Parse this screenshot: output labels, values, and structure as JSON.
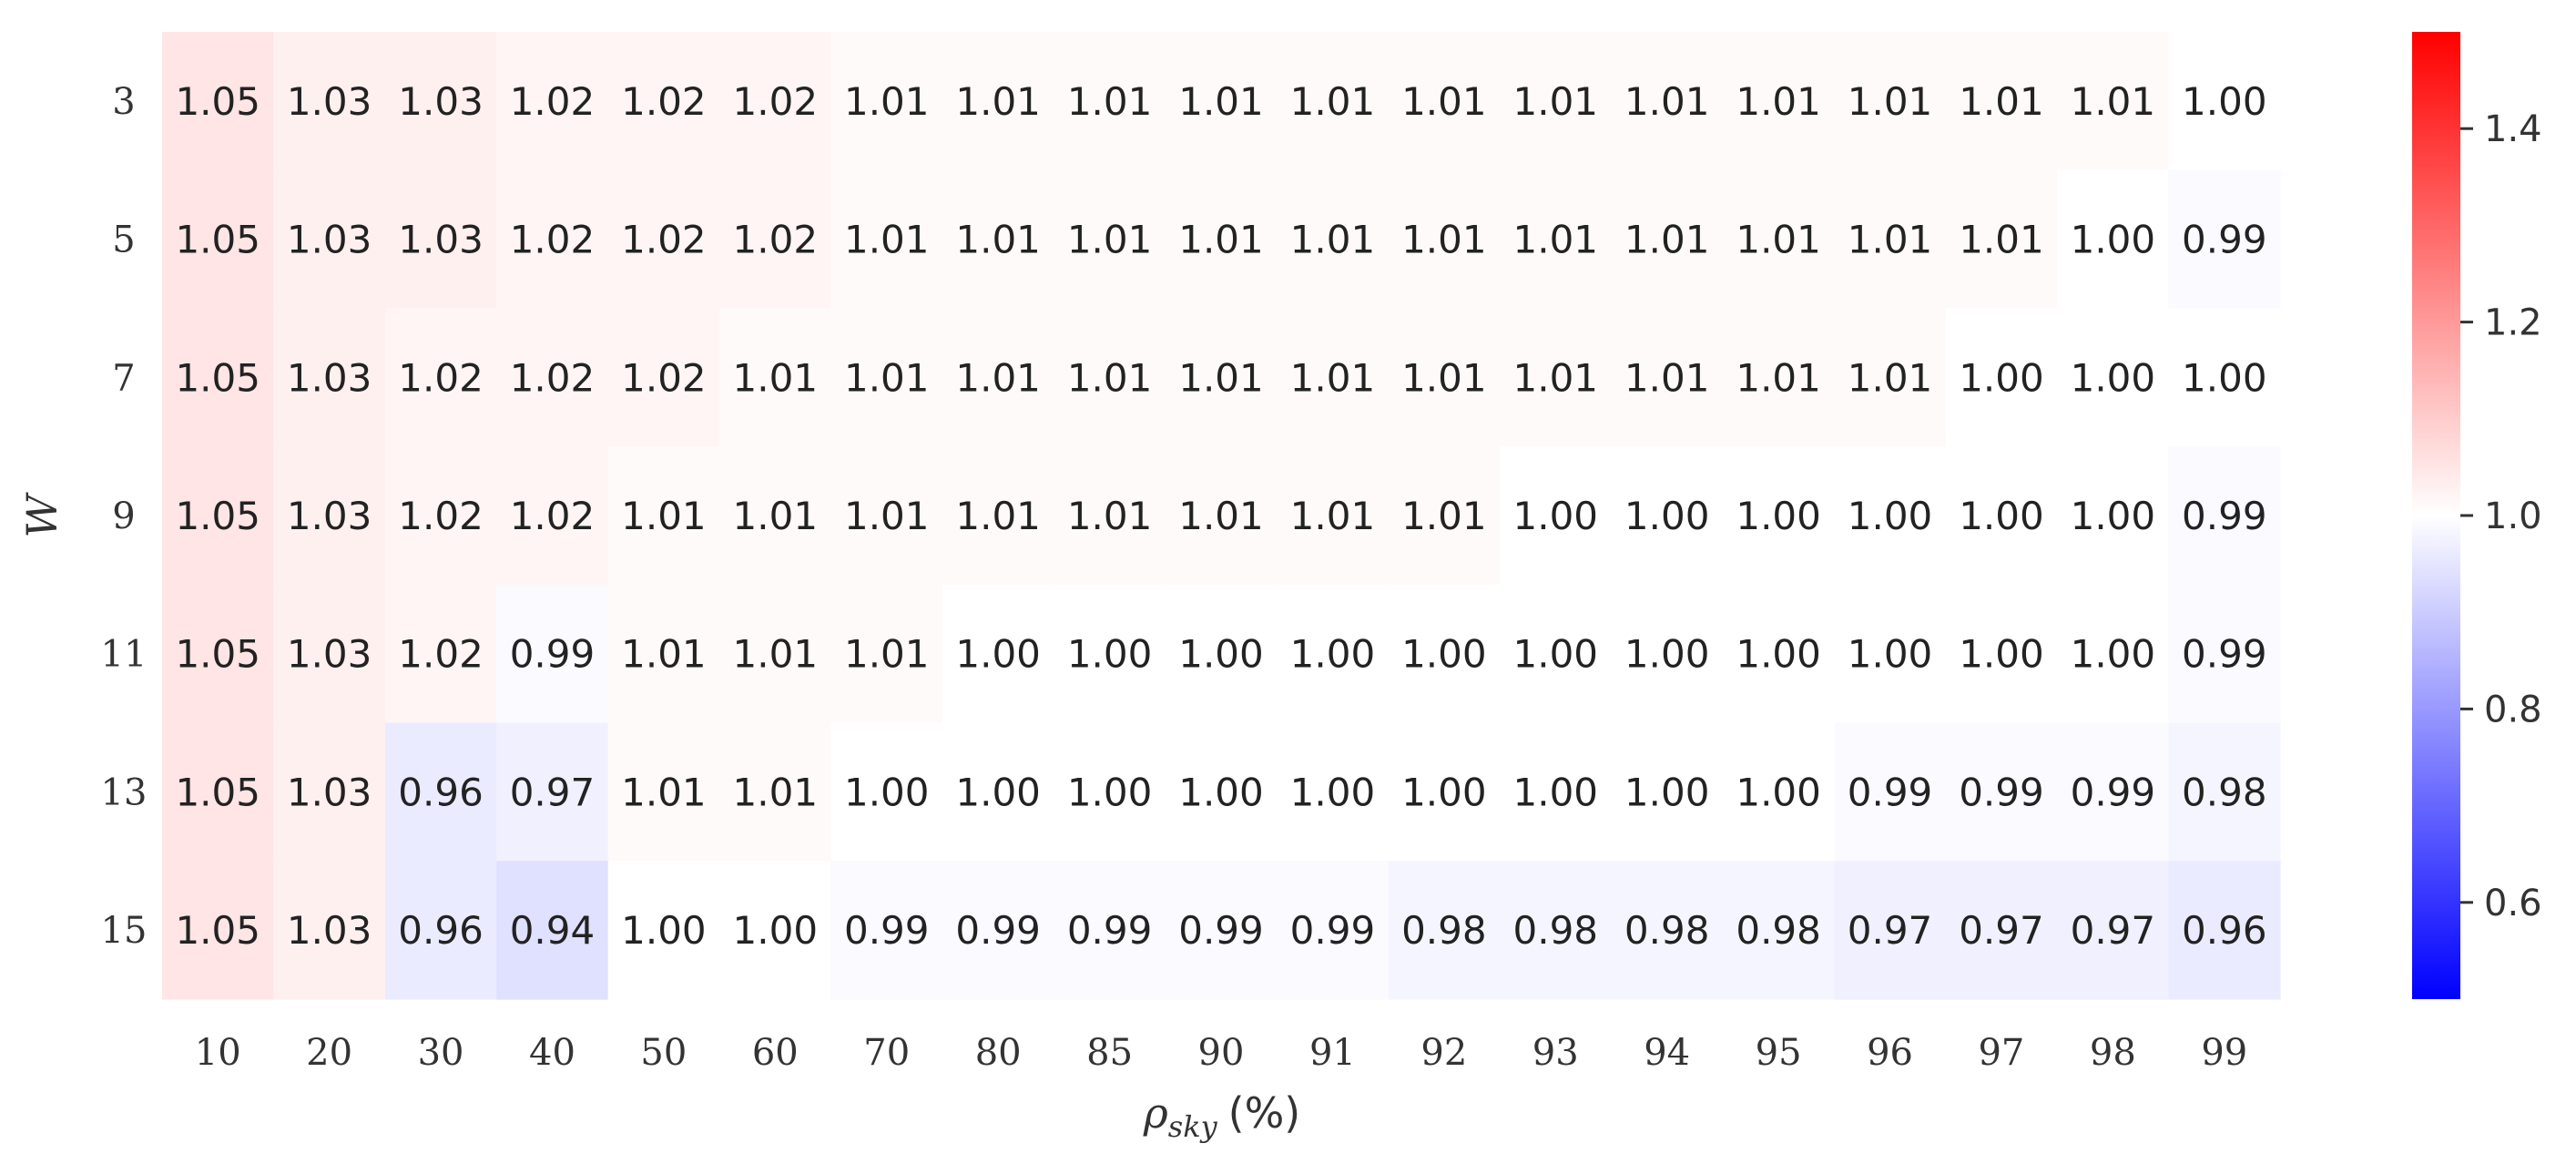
{
  "chart_data": {
    "type": "heatmap",
    "title": "",
    "xlabel": "ρsky (%)",
    "xlabel_symbol": "ρ",
    "xlabel_subscript": "sky",
    "xlabel_unit": "(%)",
    "ylabel": "W",
    "x_categories": [
      "10",
      "20",
      "30",
      "40",
      "50",
      "60",
      "70",
      "80",
      "85",
      "90",
      "91",
      "92",
      "93",
      "94",
      "95",
      "96",
      "97",
      "98",
      "99"
    ],
    "y_categories": [
      "3",
      "5",
      "7",
      "9",
      "11",
      "13",
      "15"
    ],
    "values": [
      [
        1.05,
        1.03,
        1.03,
        1.02,
        1.02,
        1.02,
        1.01,
        1.01,
        1.01,
        1.01,
        1.01,
        1.01,
        1.01,
        1.01,
        1.01,
        1.01,
        1.01,
        1.01,
        1.0
      ],
      [
        1.05,
        1.03,
        1.03,
        1.02,
        1.02,
        1.02,
        1.01,
        1.01,
        1.01,
        1.01,
        1.01,
        1.01,
        1.01,
        1.01,
        1.01,
        1.01,
        1.01,
        1.0,
        0.99
      ],
      [
        1.05,
        1.03,
        1.02,
        1.02,
        1.02,
        1.01,
        1.01,
        1.01,
        1.01,
        1.01,
        1.01,
        1.01,
        1.01,
        1.01,
        1.01,
        1.01,
        1.0,
        1.0,
        1.0
      ],
      [
        1.05,
        1.03,
        1.02,
        1.02,
        1.01,
        1.01,
        1.01,
        1.01,
        1.01,
        1.01,
        1.01,
        1.01,
        1.0,
        1.0,
        1.0,
        1.0,
        1.0,
        1.0,
        0.99
      ],
      [
        1.05,
        1.03,
        1.02,
        0.99,
        1.01,
        1.01,
        1.01,
        1.0,
        1.0,
        1.0,
        1.0,
        1.0,
        1.0,
        1.0,
        1.0,
        1.0,
        1.0,
        1.0,
        0.99
      ],
      [
        1.05,
        1.03,
        0.96,
        0.97,
        1.01,
        1.01,
        1.0,
        1.0,
        1.0,
        1.0,
        1.0,
        1.0,
        1.0,
        1.0,
        1.0,
        0.99,
        0.99,
        0.99,
        0.98
      ],
      [
        1.05,
        1.03,
        0.96,
        0.94,
        1.0,
        1.0,
        0.99,
        0.99,
        0.99,
        0.99,
        0.99,
        0.98,
        0.98,
        0.98,
        0.98,
        0.97,
        0.97,
        0.97,
        0.96
      ]
    ],
    "colormap": "bwr",
    "vmin": 0.5,
    "vmax": 1.5,
    "colorbar": {
      "ticks": [
        0.6,
        0.8,
        1.0,
        1.2,
        1.4
      ],
      "tick_labels": [
        "0.6",
        "0.8",
        "1.0",
        "1.2",
        "1.4"
      ]
    },
    "grid": false,
    "legend": "colorbar-right"
  },
  "colors": {
    "low": "#0000ff",
    "mid": "#ffffff",
    "high": "#ff0000",
    "text": "#222222"
  }
}
